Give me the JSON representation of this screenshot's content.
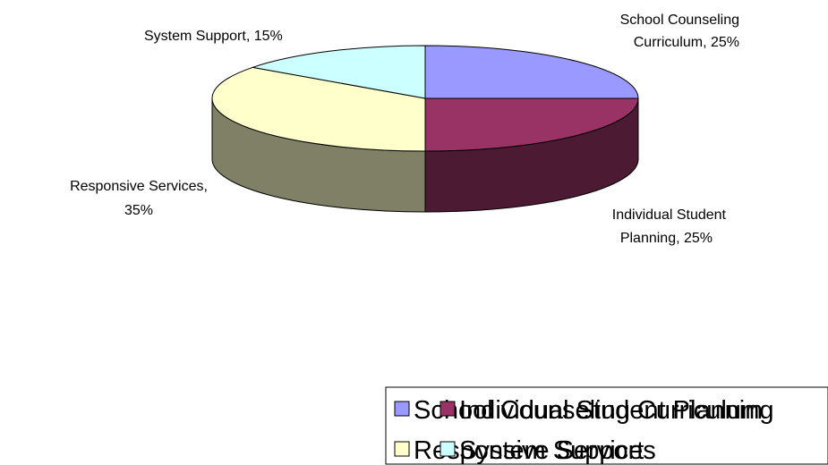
{
  "chart_data": {
    "type": "pie",
    "style": "3d",
    "slices": [
      {
        "name": "School Counseling Curriculum",
        "value": 25,
        "color": "#9999FF",
        "label": [
          "School Counseling",
          "Curriculum, 25%"
        ]
      },
      {
        "name": "Individual Student Planning",
        "value": 25,
        "color": "#993366",
        "label": [
          "Individual Student",
          "Planning, 25%"
        ]
      },
      {
        "name": "Responsive Services",
        "value": 35,
        "color": "#FFFFCC",
        "label": [
          "Responsive Services,",
          "35%"
        ]
      },
      {
        "name": "System Support",
        "value": 15,
        "color": "#CCFFFF",
        "label": [
          "System Support, 15%"
        ]
      }
    ],
    "legend": {
      "placement": "bottom",
      "entries": [
        "School Counseling Curriculum",
        "Individual Student Planning",
        "Responsive Services",
        "System Support"
      ]
    }
  }
}
